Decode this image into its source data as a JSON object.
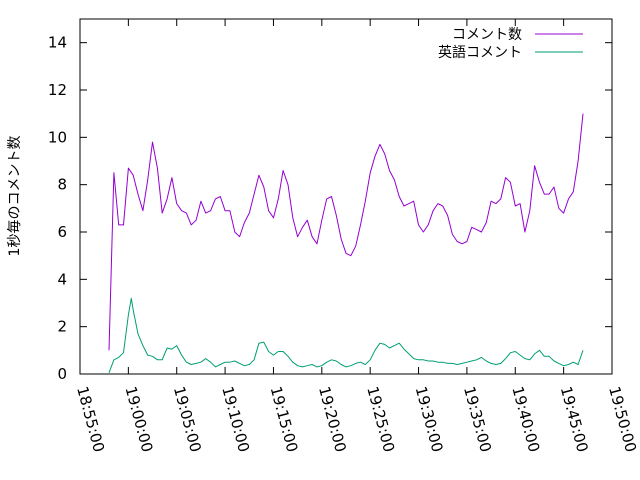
{
  "chart_data": {
    "type": "line",
    "ylabel": "1秒毎のコメント数",
    "ylim": [
      0,
      15
    ],
    "yticks": [
      0,
      2,
      4,
      6,
      8,
      10,
      12,
      14
    ],
    "xlim": [
      "18:55:00",
      "19:50:00"
    ],
    "xticks": [
      "18:55:00",
      "19:00:00",
      "19:05:00",
      "19:10:00",
      "19:15:00",
      "19:20:00",
      "19:25:00",
      "19:30:00",
      "19:35:00",
      "19:40:00",
      "19:45:00",
      "19:50:00"
    ],
    "legend_position": "top-right",
    "grid": false,
    "series": [
      {
        "name": "コメント数",
        "color": "#9400d3",
        "points": [
          [
            "18:58:00",
            1.0
          ],
          [
            "18:58:30",
            8.5
          ],
          [
            "18:59:00",
            6.3
          ],
          [
            "18:59:30",
            6.3
          ],
          [
            "19:00:00",
            8.7
          ],
          [
            "19:00:30",
            8.4
          ],
          [
            "19:01:00",
            7.6
          ],
          [
            "19:01:30",
            6.9
          ],
          [
            "19:02:00",
            8.2
          ],
          [
            "19:02:30",
            9.8
          ],
          [
            "19:03:00",
            8.7
          ],
          [
            "19:03:30",
            6.8
          ],
          [
            "19:04:00",
            7.4
          ],
          [
            "19:04:30",
            8.3
          ],
          [
            "19:05:00",
            7.2
          ],
          [
            "19:05:30",
            6.9
          ],
          [
            "19:06:00",
            6.8
          ],
          [
            "19:06:30",
            6.3
          ],
          [
            "19:07:00",
            6.5
          ],
          [
            "19:07:30",
            7.3
          ],
          [
            "19:08:00",
            6.8
          ],
          [
            "19:08:30",
            6.9
          ],
          [
            "19:09:00",
            7.4
          ],
          [
            "19:09:30",
            7.5
          ],
          [
            "19:10:00",
            6.9
          ],
          [
            "19:10:30",
            6.9
          ],
          [
            "19:11:00",
            6.0
          ],
          [
            "19:11:30",
            5.8
          ],
          [
            "19:12:00",
            6.4
          ],
          [
            "19:12:30",
            6.8
          ],
          [
            "19:13:00",
            7.6
          ],
          [
            "19:13:30",
            8.4
          ],
          [
            "19:14:00",
            7.9
          ],
          [
            "19:14:30",
            6.9
          ],
          [
            "19:15:00",
            6.6
          ],
          [
            "19:15:30",
            7.4
          ],
          [
            "19:16:00",
            8.6
          ],
          [
            "19:16:30",
            8.0
          ],
          [
            "19:17:00",
            6.6
          ],
          [
            "19:17:30",
            5.8
          ],
          [
            "19:18:00",
            6.2
          ],
          [
            "19:18:30",
            6.5
          ],
          [
            "19:19:00",
            5.8
          ],
          [
            "19:19:30",
            5.5
          ],
          [
            "19:20:00",
            6.5
          ],
          [
            "19:20:30",
            7.4
          ],
          [
            "19:21:00",
            7.5
          ],
          [
            "19:21:30",
            6.7
          ],
          [
            "19:22:00",
            5.7
          ],
          [
            "19:22:30",
            5.1
          ],
          [
            "19:23:00",
            5.0
          ],
          [
            "19:23:30",
            5.4
          ],
          [
            "19:24:00",
            6.3
          ],
          [
            "19:24:30",
            7.3
          ],
          [
            "19:25:00",
            8.5
          ],
          [
            "19:25:30",
            9.2
          ],
          [
            "19:26:00",
            9.7
          ],
          [
            "19:26:30",
            9.3
          ],
          [
            "19:27:00",
            8.6
          ],
          [
            "19:27:30",
            8.2
          ],
          [
            "19:28:00",
            7.5
          ],
          [
            "19:28:30",
            7.1
          ],
          [
            "19:29:00",
            7.2
          ],
          [
            "19:29:30",
            7.3
          ],
          [
            "19:30:00",
            6.3
          ],
          [
            "19:30:30",
            6.0
          ],
          [
            "19:31:00",
            6.3
          ],
          [
            "19:31:30",
            6.9
          ],
          [
            "19:32:00",
            7.2
          ],
          [
            "19:32:30",
            7.1
          ],
          [
            "19:33:00",
            6.7
          ],
          [
            "19:33:30",
            5.9
          ],
          [
            "19:34:00",
            5.6
          ],
          [
            "19:34:30",
            5.5
          ],
          [
            "19:35:00",
            5.6
          ],
          [
            "19:35:30",
            6.2
          ],
          [
            "19:36:00",
            6.1
          ],
          [
            "19:36:30",
            6.0
          ],
          [
            "19:37:00",
            6.4
          ],
          [
            "19:37:30",
            7.3
          ],
          [
            "19:38:00",
            7.2
          ],
          [
            "19:38:30",
            7.4
          ],
          [
            "19:39:00",
            8.3
          ],
          [
            "19:39:30",
            8.1
          ],
          [
            "19:40:00",
            7.1
          ],
          [
            "19:40:30",
            7.2
          ],
          [
            "19:41:00",
            6.0
          ],
          [
            "19:41:30",
            6.9
          ],
          [
            "19:42:00",
            8.8
          ],
          [
            "19:42:30",
            8.1
          ],
          [
            "19:43:00",
            7.6
          ],
          [
            "19:43:30",
            7.6
          ],
          [
            "19:44:00",
            7.9
          ],
          [
            "19:44:30",
            7.0
          ],
          [
            "19:45:00",
            6.8
          ],
          [
            "19:45:30",
            7.4
          ],
          [
            "19:46:00",
            7.7
          ],
          [
            "19:46:30",
            9.0
          ],
          [
            "19:47:00",
            11.0
          ]
        ]
      },
      {
        "name": "英語コメント",
        "color": "#009e73",
        "points": [
          [
            "18:58:00",
            0.05
          ],
          [
            "18:58:30",
            0.6
          ],
          [
            "18:59:00",
            0.7
          ],
          [
            "18:59:30",
            0.9
          ],
          [
            "19:00:00",
            2.5
          ],
          [
            "19:00:18",
            3.2
          ],
          [
            "19:00:30",
            2.7
          ],
          [
            "19:01:00",
            1.7
          ],
          [
            "19:01:30",
            1.2
          ],
          [
            "19:02:00",
            0.8
          ],
          [
            "19:02:30",
            0.75
          ],
          [
            "19:03:00",
            0.6
          ],
          [
            "19:03:30",
            0.6
          ],
          [
            "19:04:00",
            1.1
          ],
          [
            "19:04:30",
            1.05
          ],
          [
            "19:05:00",
            1.2
          ],
          [
            "19:05:30",
            0.8
          ],
          [
            "19:06:00",
            0.5
          ],
          [
            "19:06:30",
            0.4
          ],
          [
            "19:07:00",
            0.45
          ],
          [
            "19:07:30",
            0.5
          ],
          [
            "19:08:00",
            0.65
          ],
          [
            "19:08:30",
            0.5
          ],
          [
            "19:09:00",
            0.3
          ],
          [
            "19:09:30",
            0.4
          ],
          [
            "19:10:00",
            0.5
          ],
          [
            "19:10:30",
            0.5
          ],
          [
            "19:11:00",
            0.55
          ],
          [
            "19:11:30",
            0.45
          ],
          [
            "19:12:00",
            0.35
          ],
          [
            "19:12:30",
            0.4
          ],
          [
            "19:13:00",
            0.6
          ],
          [
            "19:13:30",
            1.3
          ],
          [
            "19:14:00",
            1.35
          ],
          [
            "19:14:30",
            0.95
          ],
          [
            "19:15:00",
            0.8
          ],
          [
            "19:15:30",
            0.95
          ],
          [
            "19:16:00",
            0.95
          ],
          [
            "19:16:30",
            0.75
          ],
          [
            "19:17:00",
            0.5
          ],
          [
            "19:17:30",
            0.35
          ],
          [
            "19:18:00",
            0.3
          ],
          [
            "19:18:30",
            0.35
          ],
          [
            "19:19:00",
            0.4
          ],
          [
            "19:19:30",
            0.3
          ],
          [
            "19:20:00",
            0.35
          ],
          [
            "19:20:30",
            0.5
          ],
          [
            "19:21:00",
            0.6
          ],
          [
            "19:21:30",
            0.55
          ],
          [
            "19:22:00",
            0.4
          ],
          [
            "19:22:30",
            0.3
          ],
          [
            "19:23:00",
            0.35
          ],
          [
            "19:23:30",
            0.45
          ],
          [
            "19:24:00",
            0.5
          ],
          [
            "19:24:30",
            0.4
          ],
          [
            "19:25:00",
            0.6
          ],
          [
            "19:25:30",
            1.0
          ],
          [
            "19:26:00",
            1.3
          ],
          [
            "19:26:30",
            1.25
          ],
          [
            "19:27:00",
            1.1
          ],
          [
            "19:27:30",
            1.2
          ],
          [
            "19:28:00",
            1.3
          ],
          [
            "19:28:30",
            1.05
          ],
          [
            "19:29:00",
            0.85
          ],
          [
            "19:29:30",
            0.65
          ],
          [
            "19:30:00",
            0.6
          ],
          [
            "19:30:30",
            0.6
          ],
          [
            "19:31:00",
            0.55
          ],
          [
            "19:31:30",
            0.55
          ],
          [
            "19:32:00",
            0.5
          ],
          [
            "19:32:30",
            0.5
          ],
          [
            "19:33:00",
            0.45
          ],
          [
            "19:33:30",
            0.45
          ],
          [
            "19:34:00",
            0.4
          ],
          [
            "19:34:30",
            0.45
          ],
          [
            "19:35:00",
            0.5
          ],
          [
            "19:35:30",
            0.55
          ],
          [
            "19:36:00",
            0.6
          ],
          [
            "19:36:30",
            0.7
          ],
          [
            "19:37:00",
            0.55
          ],
          [
            "19:37:30",
            0.45
          ],
          [
            "19:38:00",
            0.4
          ],
          [
            "19:38:30",
            0.45
          ],
          [
            "19:39:00",
            0.65
          ],
          [
            "19:39:30",
            0.9
          ],
          [
            "19:40:00",
            0.95
          ],
          [
            "19:40:30",
            0.8
          ],
          [
            "19:41:00",
            0.65
          ],
          [
            "19:41:30",
            0.6
          ],
          [
            "19:42:00",
            0.85
          ],
          [
            "19:42:30",
            1.0
          ],
          [
            "19:43:00",
            0.75
          ],
          [
            "19:43:30",
            0.75
          ],
          [
            "19:44:00",
            0.55
          ],
          [
            "19:44:30",
            0.45
          ],
          [
            "19:45:00",
            0.35
          ],
          [
            "19:45:30",
            0.4
          ],
          [
            "19:46:00",
            0.5
          ],
          [
            "19:46:30",
            0.4
          ],
          [
            "19:47:00",
            1.0
          ]
        ]
      }
    ]
  }
}
